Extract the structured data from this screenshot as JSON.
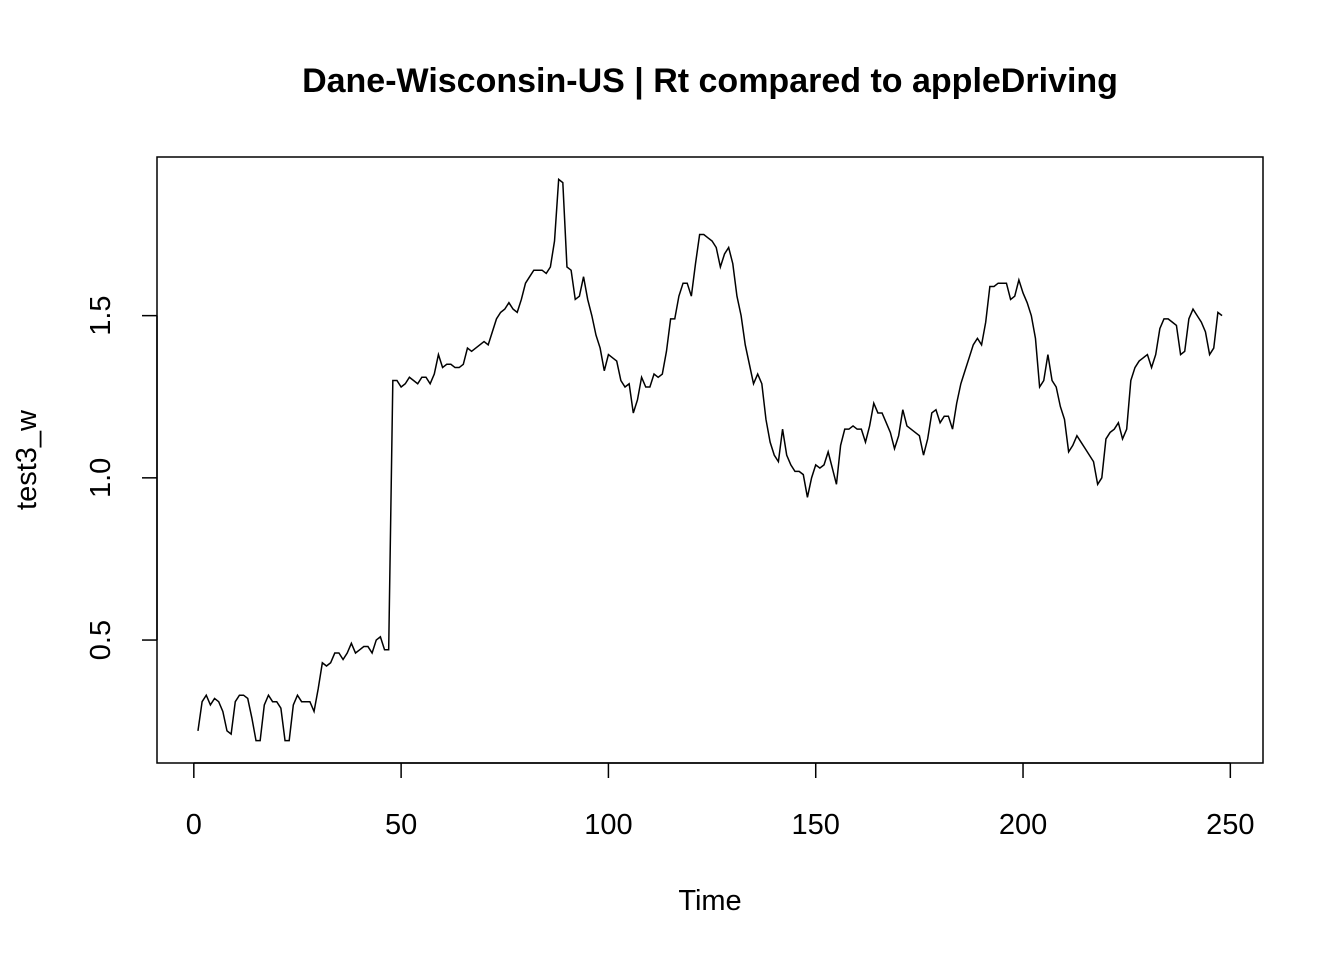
{
  "chart_data": {
    "type": "line",
    "title": "Dane-Wisconsin-US | Rt compared to appleDriving",
    "xlabel": "Time",
    "ylabel": "test3_w",
    "color": "#000000",
    "x": [
      1,
      2,
      3,
      4,
      5,
      6,
      7,
      8,
      9,
      10,
      11,
      12,
      13,
      14,
      15,
      16,
      17,
      18,
      19,
      20,
      21,
      22,
      23,
      24,
      25,
      26,
      27,
      28,
      29,
      30,
      31,
      32,
      33,
      34,
      35,
      36,
      37,
      38,
      39,
      40,
      41,
      42,
      43,
      44,
      45,
      46,
      47,
      48,
      49,
      50,
      51,
      52,
      53,
      54,
      55,
      56,
      57,
      58,
      59,
      60,
      61,
      62,
      63,
      64,
      65,
      66,
      67,
      68,
      69,
      70,
      71,
      72,
      73,
      74,
      75,
      76,
      77,
      78,
      79,
      80,
      81,
      82,
      83,
      84,
      85,
      86,
      87,
      88,
      89,
      90,
      91,
      92,
      93,
      94,
      95,
      96,
      97,
      98,
      99,
      100,
      101,
      102,
      103,
      104,
      105,
      106,
      107,
      108,
      109,
      110,
      111,
      112,
      113,
      114,
      115,
      116,
      117,
      118,
      119,
      120,
      121,
      122,
      123,
      124,
      125,
      126,
      127,
      128,
      129,
      130,
      131,
      132,
      133,
      134,
      135,
      136,
      137,
      138,
      139,
      140,
      141,
      142,
      143,
      144,
      145,
      146,
      147,
      148,
      149,
      150,
      151,
      152,
      153,
      154,
      155,
      156,
      157,
      158,
      159,
      160,
      161,
      162,
      163,
      164,
      165,
      166,
      167,
      168,
      169,
      170,
      171,
      172,
      173,
      174,
      175,
      176,
      177,
      178,
      179,
      180,
      181,
      182,
      183,
      184,
      185,
      186,
      187,
      188,
      189,
      190,
      191,
      192,
      193,
      194,
      195,
      196,
      197,
      198,
      199,
      200,
      201,
      202,
      203,
      204,
      205,
      206,
      207,
      208,
      209,
      210,
      211,
      212,
      213,
      214,
      215,
      216,
      217,
      218,
      219,
      220,
      221,
      222,
      223,
      224,
      225,
      226,
      227,
      228,
      229,
      230,
      231,
      232,
      233,
      234,
      235,
      236,
      237,
      238,
      239,
      240,
      241,
      242,
      243,
      244,
      245,
      246,
      247,
      248
    ],
    "values": [
      0.22,
      0.31,
      0.33,
      0.3,
      0.32,
      0.31,
      0.28,
      0.22,
      0.21,
      0.31,
      0.33,
      0.33,
      0.32,
      0.26,
      0.19,
      0.19,
      0.3,
      0.33,
      0.31,
      0.31,
      0.29,
      0.19,
      0.19,
      0.3,
      0.33,
      0.31,
      0.31,
      0.31,
      0.28,
      0.35,
      0.43,
      0.42,
      0.43,
      0.46,
      0.46,
      0.44,
      0.46,
      0.49,
      0.46,
      0.47,
      0.48,
      0.48,
      0.46,
      0.5,
      0.51,
      0.47,
      0.47,
      1.3,
      1.3,
      1.28,
      1.29,
      1.31,
      1.3,
      1.29,
      1.31,
      1.31,
      1.29,
      1.32,
      1.38,
      1.34,
      1.35,
      1.35,
      1.34,
      1.34,
      1.35,
      1.4,
      1.39,
      1.4,
      1.41,
      1.42,
      1.41,
      1.45,
      1.49,
      1.51,
      1.52,
      1.54,
      1.52,
      1.51,
      1.55,
      1.6,
      1.62,
      1.64,
      1.64,
      1.64,
      1.63,
      1.65,
      1.73,
      1.92,
      1.91,
      1.65,
      1.64,
      1.55,
      1.56,
      1.62,
      1.55,
      1.5,
      1.44,
      1.4,
      1.33,
      1.38,
      1.37,
      1.36,
      1.3,
      1.28,
      1.29,
      1.2,
      1.24,
      1.31,
      1.28,
      1.28,
      1.32,
      1.31,
      1.32,
      1.39,
      1.49,
      1.49,
      1.56,
      1.6,
      1.6,
      1.56,
      1.66,
      1.75,
      1.75,
      1.74,
      1.73,
      1.71,
      1.65,
      1.69,
      1.71,
      1.66,
      1.56,
      1.5,
      1.41,
      1.35,
      1.29,
      1.32,
      1.29,
      1.18,
      1.11,
      1.07,
      1.05,
      1.15,
      1.07,
      1.04,
      1.02,
      1.02,
      1.01,
      0.94,
      1.0,
      1.04,
      1.03,
      1.04,
      1.08,
      1.03,
      0.98,
      1.1,
      1.15,
      1.15,
      1.16,
      1.15,
      1.15,
      1.11,
      1.16,
      1.23,
      1.2,
      1.2,
      1.17,
      1.14,
      1.09,
      1.13,
      1.21,
      1.16,
      1.15,
      1.14,
      1.13,
      1.07,
      1.12,
      1.2,
      1.21,
      1.17,
      1.19,
      1.19,
      1.15,
      1.23,
      1.29,
      1.33,
      1.37,
      1.41,
      1.43,
      1.41,
      1.48,
      1.59,
      1.59,
      1.6,
      1.6,
      1.6,
      1.55,
      1.56,
      1.61,
      1.57,
      1.54,
      1.5,
      1.43,
      1.28,
      1.3,
      1.38,
      1.3,
      1.28,
      1.22,
      1.18,
      1.08,
      1.1,
      1.13,
      1.11,
      1.09,
      1.07,
      1.05,
      0.98,
      1.0,
      1.12,
      1.14,
      1.15,
      1.17,
      1.12,
      1.15,
      1.3,
      1.34,
      1.36,
      1.37,
      1.38,
      1.34,
      1.38,
      1.46,
      1.49,
      1.49,
      1.48,
      1.47,
      1.38,
      1.39,
      1.49,
      1.52,
      1.5,
      1.48,
      1.45,
      1.38,
      1.4,
      1.51,
      1.5
    ],
    "xlim": [
      -8.88,
      257.88
    ],
    "ylim": [
      0.121,
      1.989
    ],
    "xticks": [
      0,
      50,
      100,
      150,
      200,
      250
    ],
    "yticks": [
      0.5,
      {
        "value": 1,
        "label": "1.0"
      },
      1.5
    ]
  }
}
